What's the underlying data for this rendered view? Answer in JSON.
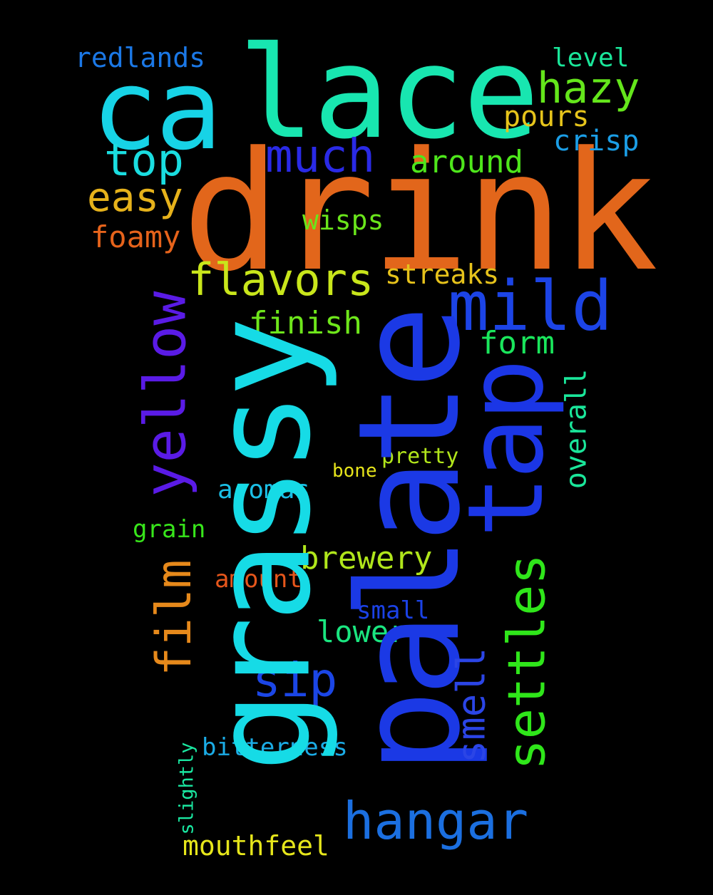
{
  "words": {
    "drink": "drink",
    "palate": "palate",
    "grassy": "grassy",
    "lace": "lace",
    "ca": "ca",
    "tap": "tap",
    "mild": "mild",
    "yellow": "yellow",
    "settles": "settles",
    "hangar": "hangar",
    "film": "film",
    "much": "much",
    "flavors": "flavors",
    "hazy": "hazy",
    "sip": "sip",
    "top": "top",
    "easy": "easy",
    "redlands": "redlands",
    "smell": "smell",
    "level": "level",
    "pours": "pours",
    "crisp": "crisp",
    "around": "around",
    "foamy": "foamy",
    "wisps": "wisps",
    "streaks": "streaks",
    "finish": "finish",
    "form": "form",
    "overall": "overall",
    "pretty": "pretty",
    "bone": "bone",
    "aromas": "aromas",
    "grain": "grain",
    "brewery": "brewery",
    "amount": "amount",
    "small": "small",
    "lower": "lower",
    "bitterness": "bitterness",
    "slightly": "slightly",
    "mouthfeel": "mouthfeel"
  },
  "colors": {
    "drink": "#e2661b",
    "palate": "#1b39e5",
    "grassy": "#16dbe6",
    "lace": "#18e6b0",
    "ca": "#17d3e6",
    "tap": "#1b36e6",
    "mild": "#1c44e6",
    "yellow": "#5a1be6",
    "settles": "#2fe61a",
    "hangar": "#1b6fe0",
    "film": "#e6891b",
    "much": "#2a2ae6",
    "flavors": "#c9e61b",
    "hazy": "#64e61b",
    "sip": "#1b46e6",
    "top": "#1adde0",
    "easy": "#e6b21b",
    "redlands": "#1b78e6",
    "smell": "#2b45e6",
    "level": "#1ae69a",
    "pours": "#e6c41b",
    "crisp": "#1b9ee6",
    "around": "#4ee61b",
    "foamy": "#e6631b",
    "wisps": "#6ae61b",
    "streaks": "#e6c21b",
    "finish": "#6ee61b",
    "form": "#1ae65c",
    "overall": "#1ae69a",
    "pretty": "#b2e61b",
    "bone": "#e6e41b",
    "aromas": "#1bbfe6",
    "grain": "#38e61b",
    "brewery": "#b0e61b",
    "amount": "#e6561b",
    "small": "#1b42e6",
    "lower": "#1ae680",
    "bitterness": "#1bace6",
    "slightly": "#1ae6a0",
    "mouthfeel": "#e6e61b"
  }
}
